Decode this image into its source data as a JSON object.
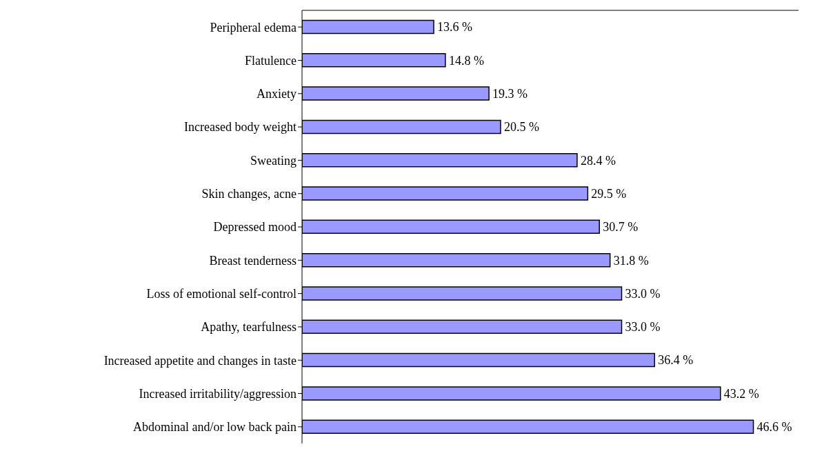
{
  "chart_data": {
    "type": "bar",
    "orientation": "horizontal",
    "categories": [
      "Peripheral edema",
      "Flatulence",
      "Anxiety",
      "Increased body weight",
      "Sweating",
      "Skin changes, acne",
      "Depressed mood",
      "Breast tenderness",
      "Loss of emotional self-control",
      "Apathy, tearfulness",
      "Increased appetite and changes in taste",
      "Increased irritability/aggression",
      "Abdominal and/or low back pain"
    ],
    "values": [
      13.6,
      14.8,
      19.3,
      20.5,
      28.4,
      29.5,
      30.7,
      31.8,
      33.0,
      33.0,
      36.4,
      43.2,
      46.6
    ],
    "value_labels": [
      "13.6 %",
      "14.8 %",
      "19.3 %",
      "20.5 %",
      "28.4 %",
      "29.5 %",
      "30.7 %",
      "31.8 %",
      "33.0 %",
      "33.0 %",
      "36.4 %",
      "43.2 %",
      "46.6 %"
    ],
    "color": "#9999ff",
    "grid": false,
    "legend": false
  }
}
